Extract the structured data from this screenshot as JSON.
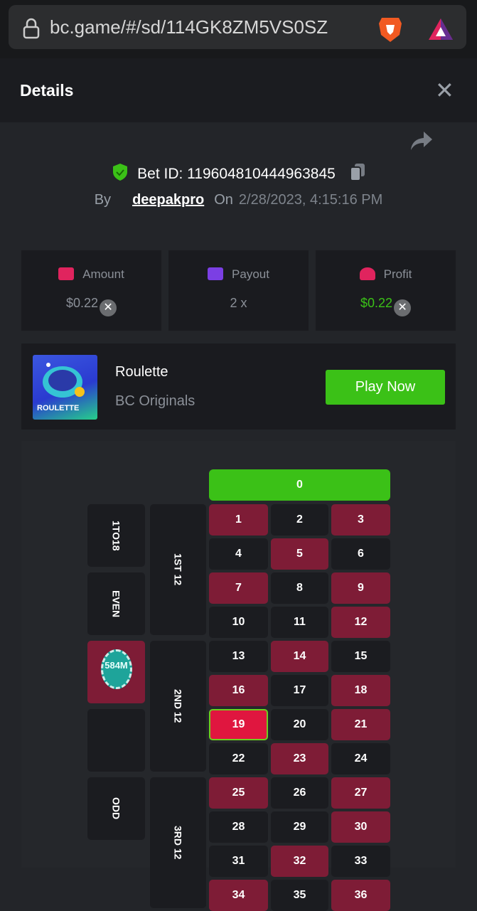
{
  "browser": {
    "url": "bc.game/#/sd/114GK8ZM5VS0SZ"
  },
  "header": {
    "title": "Details"
  },
  "bet": {
    "id_label": "Bet ID: 119604810444963845",
    "by_label": "By",
    "user": "deepakpro",
    "on_label": "On",
    "date": "2/28/2023, 4:15:16 PM"
  },
  "stats": [
    {
      "label": "Amount",
      "value": "$0.22",
      "color": "#8b9098",
      "icon_color": "#e0245e"
    },
    {
      "label": "Payout",
      "value": "2 x",
      "color": "#8b9098",
      "icon_color": "#7b3fe4"
    },
    {
      "label": "Profit",
      "value": "$0.22",
      "color": "#3bc117",
      "icon_color": "#e0245e"
    }
  ],
  "game": {
    "thumb_label": "ROULETTE",
    "name": "Roulette",
    "provider": "BC Originals",
    "play_label": "Play Now"
  },
  "roulette": {
    "zero": "0",
    "red_numbers": [
      1,
      3,
      5,
      7,
      9,
      12,
      14,
      16,
      18,
      19,
      21,
      23,
      25,
      27,
      30,
      32,
      34,
      36
    ],
    "winning_number": 19,
    "outside": [
      "1TO18",
      "EVEN",
      "",
      "",
      "ODD"
    ],
    "dozens": [
      "1ST 12",
      "2ND 12",
      "3RD 12"
    ],
    "chip_label": "584M"
  }
}
